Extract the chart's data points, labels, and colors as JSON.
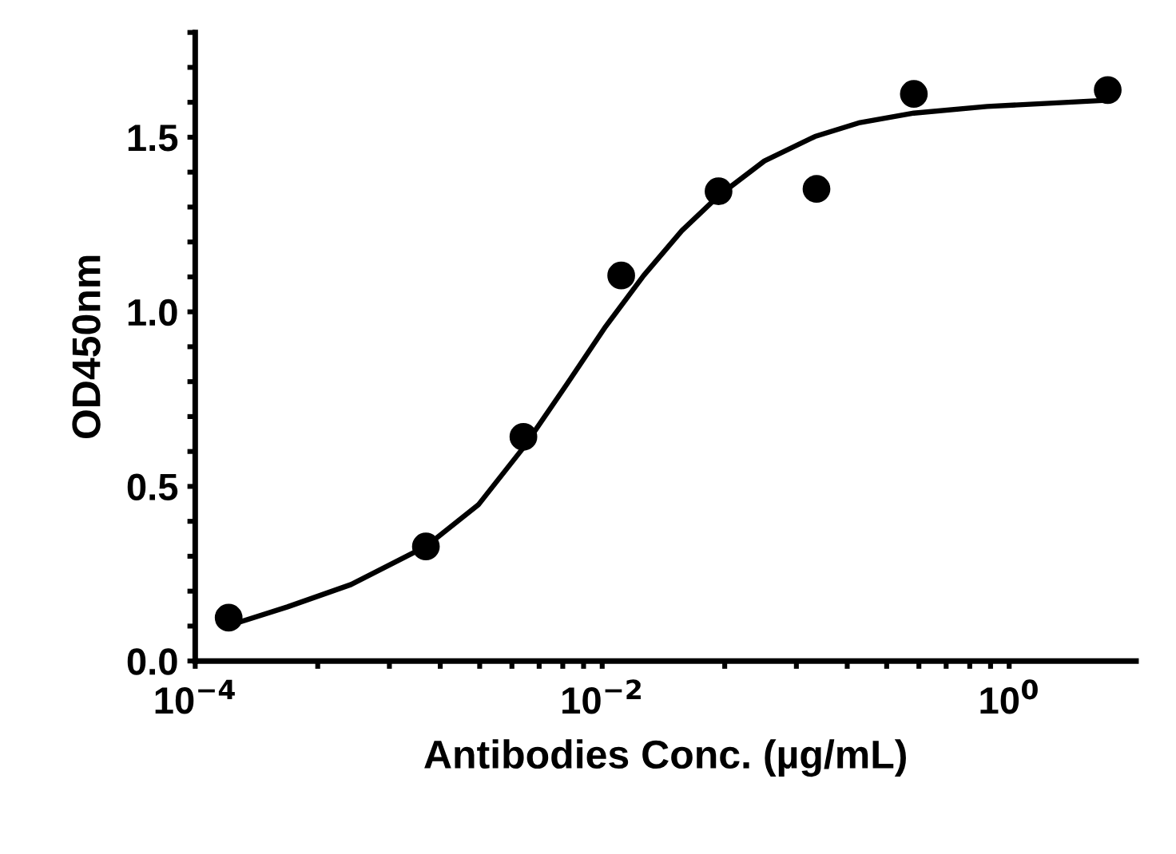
{
  "chart_data": {
    "type": "scatter",
    "xlabel": "Antibodies Conc. (µg/mL)",
    "ylabel": "OD450nm",
    "log": "x",
    "xlim": [
      0.0001,
      4.2
    ],
    "ylim": [
      0,
      1.8
    ],
    "xticks": [
      {
        "value": 0.0001,
        "label": "10$^{−4}$"
      },
      {
        "value": 0.0004,
        "label": null
      },
      {
        "value": 0.0009,
        "label": null
      },
      {
        "value": 0.0016,
        "label": null
      },
      {
        "value": 0.0025,
        "label": null
      },
      {
        "value": 0.0036,
        "label": null
      },
      {
        "value": 0.0049,
        "label": null
      },
      {
        "value": 0.0064,
        "label": null
      },
      {
        "value": 0.0081,
        "label": null
      },
      {
        "value": 0.01,
        "label": "10$^{−2}$"
      },
      {
        "value": 0.04,
        "label": null
      },
      {
        "value": 0.09,
        "label": null
      },
      {
        "value": 0.16,
        "label": null
      },
      {
        "value": 0.25,
        "label": null
      },
      {
        "value": 0.36,
        "label": null
      },
      {
        "value": 0.49,
        "label": null
      },
      {
        "value": 0.64,
        "label": null
      },
      {
        "value": 0.81,
        "label": null
      },
      {
        "value": 1,
        "label": "10$^{0}$"
      }
    ],
    "yticks": [
      {
        "value": 0,
        "label": "0.0"
      },
      {
        "value": 0.1,
        "label": null
      },
      {
        "value": 0.2,
        "label": null
      },
      {
        "value": 0.3,
        "label": null
      },
      {
        "value": 0.4,
        "label": null
      },
      {
        "value": 0.5,
        "label": "0.5"
      },
      {
        "value": 0.6,
        "label": null
      },
      {
        "value": 0.7,
        "label": null
      },
      {
        "value": 0.8,
        "label": null
      },
      {
        "value": 0.9,
        "label": null
      },
      {
        "value": 1.0,
        "label": "1.0"
      },
      {
        "value": 1.1,
        "label": null
      },
      {
        "value": 1.2,
        "label": null
      },
      {
        "value": 1.3,
        "label": null
      },
      {
        "value": 1.4,
        "label": null
      },
      {
        "value": 1.5,
        "label": "1.5"
      },
      {
        "value": 1.6,
        "label": null
      },
      {
        "value": 1.7,
        "label": null
      },
      {
        "value": 1.8,
        "label": null
      }
    ],
    "grid": false,
    "legend": false,
    "series": [
      {
        "color": "#000000",
        "marker": "circle",
        "x": [
          0.000146,
          0.00136,
          0.0041,
          0.0124,
          0.0373,
          0.113,
          0.34,
          3.05
        ],
        "values": [
          0.124,
          0.328,
          0.642,
          1.104,
          1.345,
          1.352,
          1.624,
          1.635
        ]
      },
      {
        "type": "line",
        "color": "#000000",
        "marker": "none",
        "line_style": "solid",
        "x": [
          0.00016,
          0.000284,
          0.000583,
          0.00136,
          0.00246,
          0.0041,
          0.00673,
          0.0104,
          0.016,
          0.0246,
          0.0373,
          0.0627,
          0.111,
          0.185,
          0.34,
          0.78,
          3.05
        ],
        "values": [
          0.109,
          0.155,
          0.219,
          0.328,
          0.447,
          0.611,
          0.794,
          0.958,
          1.104,
          1.232,
          1.332,
          1.432,
          1.502,
          1.542,
          1.569,
          1.588,
          1.606
        ]
      }
    ]
  }
}
